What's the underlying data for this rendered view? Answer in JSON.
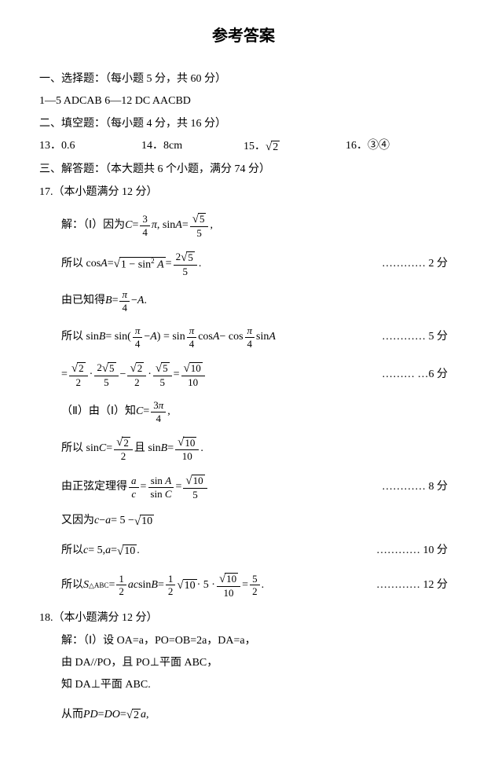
{
  "title": "参考答案",
  "sec1": {
    "heading": "一、选择题：（每小题 5 分，共 60 分）",
    "answers": "1—5  ADCAB  6—12  DC AACBD"
  },
  "sec2": {
    "heading": "二、填空题：（每小题 4 分，共 16 分）",
    "a13": "13．0.6",
    "a14": "14．8cm",
    "a15_pre": "15．",
    "a15_rad": "2",
    "a16": "16．③④"
  },
  "sec3": {
    "heading": "三、解答题：（本大题共 6 个小题，满分 74 分）",
    "q17": "17.（本小题满分 12 分）",
    "l1a": "解：（Ⅰ）因为 ",
    "l2a": "所以 cos ",
    "l2_score": "………… 2 分",
    "l3a": "由已知得 ",
    "l4a": "所以 sin ",
    "l4_score": "………… 5 分",
    "l5_score": "……… …6 分",
    "l6a": "（Ⅱ）由（Ⅰ）知",
    "l7a": "所以 sin ",
    "l7b": " 且 sin ",
    "l8a": "由正弦定理得 ",
    "l8_score": "………… 8 分",
    "l9a": "又因为 ",
    "l10a": "所以 ",
    "l10_score": "………… 10 分",
    "l11a": "所以 ",
    "l11_score": "………… 12 分",
    "q18": "18.（本小题满分 12 分）",
    "q18_l1": "解：（Ⅰ）设 OA=a，PO=OB=2a，DA=a，",
    "q18_l2": "由 DA//PO，且 PO⊥平面 ABC，",
    "q18_l3": "知 DA⊥平面 ABC.",
    "q18_l4a": "从而 "
  }
}
